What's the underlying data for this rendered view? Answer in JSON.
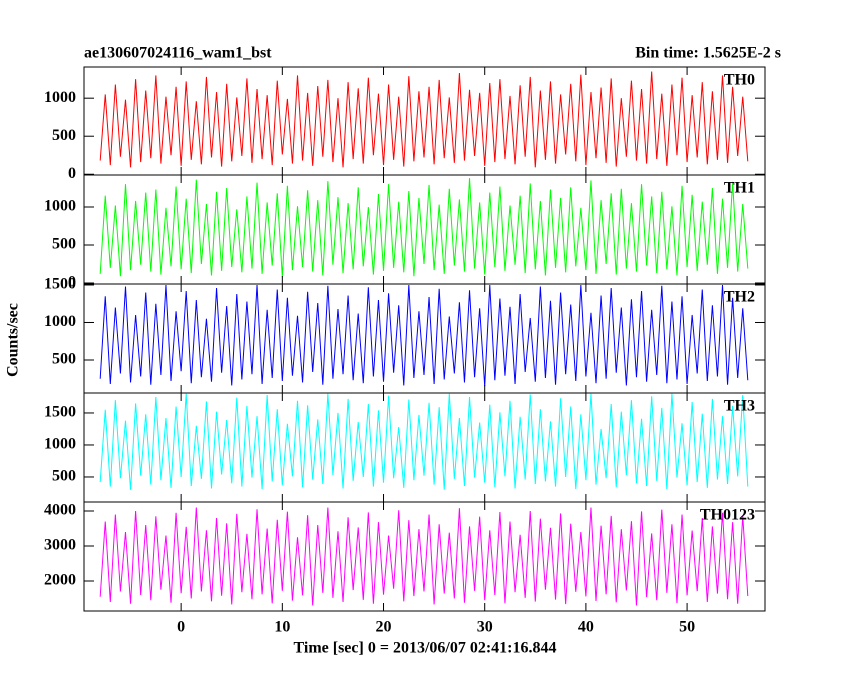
{
  "chart_data": {
    "type": "line",
    "title": "ae130607024116_wam1_bst",
    "subtitle": "Bin time: 1.5625E-2 s",
    "xlabel": "Time [sec] 0 = 2013/06/07 02:41:16.844",
    "ylabel": "Counts/sec",
    "xlim": [
      -9.6,
      57.7
    ],
    "xticks": [
      0,
      10,
      20,
      30,
      40,
      50
    ],
    "x": [
      -8,
      -7.5,
      -7,
      -6.5,
      -6,
      -5.5,
      -5,
      -4.5,
      -4,
      -3.5,
      -3,
      -2.5,
      -2,
      -1.5,
      -1,
      -0.5,
      0,
      0.5,
      1,
      1.5,
      2,
      2.5,
      3,
      3.5,
      4,
      4.5,
      5,
      5.5,
      6,
      6.5,
      7,
      7.5,
      8,
      8.5,
      9,
      9.5,
      10,
      10.5,
      11,
      11.5,
      12,
      12.5,
      13,
      13.5,
      14,
      14.5,
      15,
      15.5,
      16,
      16.5,
      17,
      17.5,
      18,
      18.5,
      19,
      19.5,
      20,
      20.5,
      21,
      21.5,
      22,
      22.5,
      23,
      23.5,
      24,
      24.5,
      25,
      25.5,
      26,
      26.5,
      27,
      27.5,
      28,
      28.5,
      29,
      29.5,
      30,
      30.5,
      31,
      31.5,
      32,
      32.5,
      33,
      33.5,
      34,
      34.5,
      35,
      35.5,
      36,
      36.5,
      37,
      37.5,
      38,
      38.5,
      39,
      39.5,
      40,
      40.5,
      41,
      41.5,
      42,
      42.5,
      43,
      43.5,
      44,
      44.5,
      45,
      45.5,
      46,
      46.5,
      47,
      47.5,
      48,
      48.5,
      49,
      49.5,
      50,
      50.5,
      51,
      51.5,
      52,
      52.5,
      53,
      53.5,
      54,
      54.5,
      55,
      55.5,
      56
    ],
    "panels": [
      {
        "ylim": [
          -10,
          1410
        ],
        "yticks": [
          0,
          500,
          1000
        ],
        "series": [
          {
            "name": "TH0",
            "color": "#ff0000",
            "values": [
              180,
              1050,
              120,
              1180,
              230,
              980,
              90,
              1250,
              160,
              1100,
              210,
              1300,
              140,
              1020,
              250,
              1150,
              110,
              1220,
              190,
              960,
              130,
              1280,
              220,
              1080,
              100,
              1190,
              170,
              1010,
              240,
              1260,
              150,
              1120,
              200,
              1040,
              120,
              1230,
              260,
              990,
              140,
              1300,
              180,
              1070,
              110,
              1160,
              230,
              1240,
              160,
              1000,
              90,
              1210,
              200,
              1130,
              140,
              1270,
              250,
              1060,
              120,
              1180,
              190,
              1020,
              100,
              1290,
              170,
              1090,
              220,
              1150,
              130,
              1240,
              210,
              1010,
              150,
              1330,
              180,
              1110,
              240,
              1070,
              110,
              1200,
              160,
              1250,
              200,
              1030,
              130,
              1170,
              230,
              1280,
              90,
              1100,
              190,
              1220,
              140,
              1050,
              260,
              1190,
              170,
              1310,
              120,
              1080,
              210,
              1140,
              150,
              1260,
              100,
              1000,
              230,
              1230,
              180,
              1120,
              140,
              1350,
              200,
              1060,
              110,
              1180,
              250,
              1270,
              160,
              1040,
              220,
              1210,
              130,
              1090,
              190,
              1300,
              150,
              1150,
              240,
              1020,
              170
            ]
          }
        ]
      },
      {
        "ylim": [
          -13,
          1421
        ],
        "yticks": [
          0,
          500,
          1000
        ],
        "series": [
          {
            "name": "TH1",
            "color": "#00ff00",
            "values": [
              120,
              1150,
              200,
              1020,
              90,
              1300,
              170,
              1080,
              240,
              1190,
              150,
              1230,
              110,
              990,
              220,
              1270,
              180,
              1110,
              130,
              1360,
              250,
              1040,
              100,
              1200,
              160,
              1250,
              210,
              970,
              140,
              1140,
              190,
              1320,
              120,
              1060,
              230,
              1180,
              80,
              1280,
              170,
              1010,
              210,
              1220,
              150,
              1090,
              100,
              1340,
              240,
              1130,
              130,
              1050,
              180,
              1260,
              220,
              1000,
              110,
              1170,
              160,
              1300,
              200,
              1070,
              140,
              1210,
              90,
              1120,
              250,
              1290,
              170,
              1030,
              120,
              1240,
              230,
              1100,
              150,
              1380,
              190,
              1060,
              110,
              1190,
              210,
              1270,
              160,
              1020,
              240,
              1150,
              130,
              1310,
              180,
              1080,
              100,
              1230,
              200,
              1120,
              140,
              1260,
              220,
              990,
              170,
              1350,
              120,
              1090,
              250,
              1180,
              110,
              1240,
              190,
              1050,
              150,
              1300,
              230,
              1140,
              130,
              1200,
              180,
              1010,
              100,
              1280,
              210,
              1160,
              160,
              1070,
              240,
              1250,
              120,
              1110,
              200,
              1330,
              150,
              1040,
              190
            ]
          }
        ]
      },
      {
        "ylim": [
          60,
          1513
        ],
        "yticks": [
          500,
          1000,
          1500
        ],
        "series": [
          {
            "name": "TH2",
            "color": "#0000ff",
            "values": [
              250,
              1350,
              180,
              1200,
              320,
              1480,
              200,
              1100,
              280,
              1400,
              170,
              1250,
              300,
              1500,
              220,
              1150,
              350,
              1420,
              190,
              1300,
              270,
              1050,
              210,
              1460,
              330,
              1220,
              160,
              1380,
              240,
              1280,
              310,
              1500,
              180,
              1170,
              260,
              1440,
              220,
              1330,
              290,
              1090,
              200,
              1410,
              340,
              1260,
              170,
              1490,
              250,
              1180,
              310,
              1360,
              230,
              1120,
              190,
              1470,
              280,
              1300,
              210,
              1390,
              330,
              1230,
              160,
              1500,
              260,
              1150,
              300,
              1340,
              180,
              1450,
              240,
              1080,
              320,
              1270,
              200,
              1430,
              270,
              1190,
              150,
              1500,
              230,
              1320,
              290,
              1210,
              180,
              1380,
              340,
              1060,
              210,
              1480,
              260,
              1290,
              170,
              1400,
              310,
              1240,
              220,
              1500,
              280,
              1130,
              190,
              1360,
              250,
              1460,
              330,
              1200,
              160,
              1310,
              270,
              1420,
              210,
              1170,
              300,
              1490,
              190,
              1280,
              240,
              1350,
              180,
              1100,
              320,
              1440,
              220,
              1230,
              280,
              1500,
              170,
              1330,
              260,
              1190,
              230
            ]
          }
        ]
      },
      {
        "ylim": [
          109,
          1812
        ],
        "yticks": [
          500,
          1000,
          1500
        ],
        "series": [
          {
            "name": "TH3",
            "color": "#00ffff",
            "values": [
              420,
              1550,
              350,
              1700,
              480,
              1380,
              300,
              1650,
              520,
              1480,
              380,
              1750,
              450,
              1420,
              330,
              1600,
              500,
              1800,
              360,
              1300,
              470,
              1680,
              320,
              1520,
              540,
              1390,
              400,
              1740,
              350,
              1610,
              490,
              1450,
              310,
              1780,
              430,
              1560,
              370,
              1330,
              510,
              1690,
              340,
              1620,
              460,
              1400,
              390,
              1800,
              530,
              1500,
              320,
              1720,
              440,
              1360,
              500,
              1640,
              350,
              1540,
              410,
              1770,
              480,
              1280,
              330,
              1710,
              450,
              1470,
              520,
              1660,
              380,
              1590,
              300,
              1800,
              470,
              1420,
              360,
              1750,
              490,
              1350,
              410,
              1630,
              340,
              1510,
              510,
              1690,
              320,
              1440,
              460,
              1790,
              390,
              1560,
              430,
              1370,
              350,
              1730,
              500,
              1600,
              310,
              1480,
              450,
              1800,
              380,
              1250,
              480,
              1640,
              340,
              1520,
              530,
              1700,
              400,
              1410,
              360,
              1760,
              440,
              1580,
              310,
              1800,
              490,
              1340,
              370,
              1670,
              420,
              1490,
              330,
              1720,
              460,
              1450,
              390,
              1610,
              510,
              1780,
              350
            ]
          }
        ]
      },
      {
        "ylim": [
          1143,
          4257
        ],
        "yticks": [
          2000,
          3000,
          4000
        ],
        "series": [
          {
            "name": "TH0123",
            "color": "#ff00ff",
            "values": [
              1550,
              3700,
              1400,
              3900,
              1700,
              3400,
              1350,
              4000,
              1600,
              3600,
              1450,
              3850,
              1750,
              3300,
              1380,
              3950,
              1650,
              3550,
              1500,
              4100,
              1700,
              3450,
              1420,
              3800,
              1580,
              3650,
              1330,
              3920,
              1680,
              3350,
              1480,
              4050,
              1620,
              3500,
              1360,
              3750,
              1720,
              3980,
              1440,
              3250,
              1590,
              3880,
              1300,
              3600,
              1660,
              4100,
              1520,
              3420,
              1400,
              3820,
              1740,
              3530,
              1460,
              3960,
              1350,
              3680,
              1610,
              3300,
              1780,
              4020,
              1420,
              3740,
              1570,
              3480,
              1700,
              3900,
              1330,
              3620,
              1640,
              3380,
              1500,
              4080,
              1380,
              3560,
              1720,
              3840,
              1450,
              3450,
              1600,
              3970,
              1360,
              3700,
              1680,
              3320,
              1520,
              4000,
              1410,
              3780,
              1750,
              3520,
              1470,
              3930,
              1340,
              3640,
              1690,
              3400,
              1560,
              4100,
              1430,
              3580,
              1620,
              3860,
              1390,
              3480,
              1730,
              3710,
              1300,
              3990,
              1540,
              3360,
              1450,
              4040,
              1660,
              3620,
              1370,
              3900,
              1590,
              3440,
              1710,
              3800,
              1400,
              3560,
              1640,
              3950,
              1480,
              3680,
              1350,
              3860,
              1570
            ]
          }
        ]
      }
    ]
  }
}
